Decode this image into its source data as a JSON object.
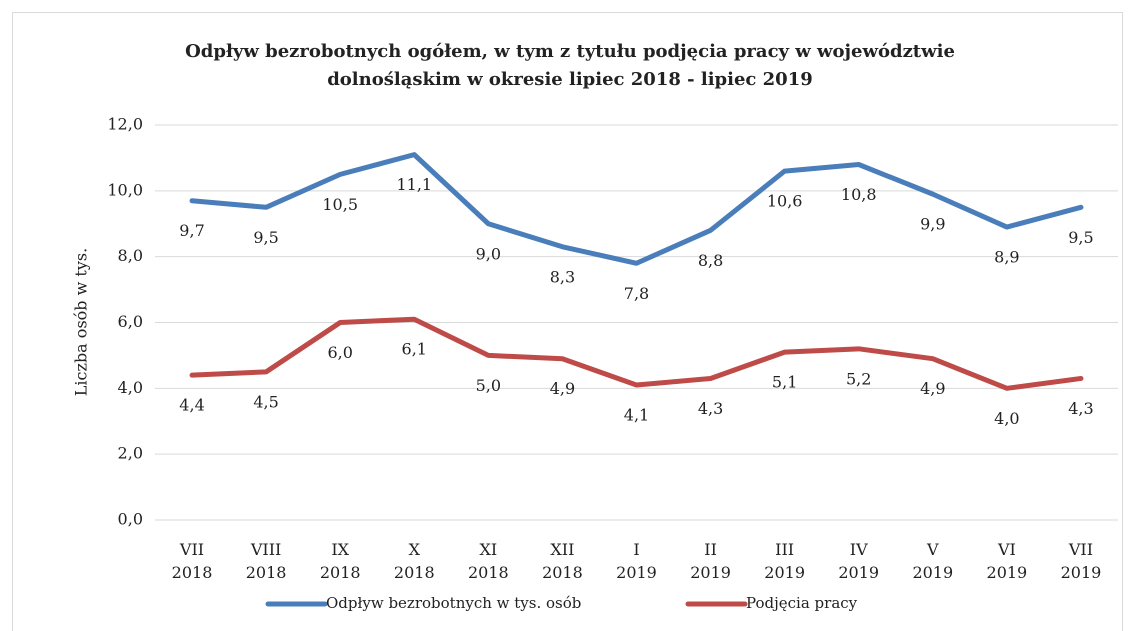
{
  "chart_data": {
    "type": "line",
    "title": [
      "Odpływ bezrobotnych ogółem, w tym z tytułu podjęcia pracy  w województwie",
      "dolnośląskim w okresie lipiec 2018  - lipiec 2019"
    ],
    "y_label": "Liczba osób w tys.",
    "categories": [
      "VII 2018",
      "VIII 2018",
      "IX 2018",
      "X 2018",
      "XI 2018",
      "XII 2018",
      "I 2019",
      "II 2019",
      "III 2019",
      "IV 2019",
      "V 2019",
      "VI 2019",
      "VII 2019"
    ],
    "series": [
      {
        "name": "Odpływ bezrobotnych w tys. osób",
        "color": "#4a7ebb",
        "values": [
          9.7,
          9.5,
          10.5,
          11.1,
          9.0,
          8.3,
          7.8,
          8.8,
          10.6,
          10.8,
          9.9,
          8.9,
          9.5
        ],
        "value_labels": [
          "9,7",
          "9,5",
          "10,5",
          "11,1",
          "9,0",
          "8,3",
          "7,8",
          "8,8",
          "10,6",
          "10,8",
          "9,9",
          "8,9",
          "9,5"
        ]
      },
      {
        "name": "Podjęcia pracy",
        "color": "#be4b48",
        "values": [
          4.4,
          4.5,
          6.0,
          6.1,
          5.0,
          4.9,
          4.1,
          4.3,
          5.1,
          5.2,
          4.9,
          4.0,
          4.3
        ],
        "value_labels": [
          "4,4",
          "4,5",
          "6,0",
          "6,1",
          "5,0",
          "4,9",
          "4,1",
          "4,3",
          "5,1",
          "5,2",
          "4,9",
          "4,0",
          "4,3"
        ]
      }
    ],
    "ylim": [
      0,
      12
    ],
    "yticks": [
      {
        "value": 0,
        "label": "0,0"
      },
      {
        "value": 2,
        "label": "2,0"
      },
      {
        "value": 4,
        "label": "4,0"
      },
      {
        "value": 6,
        "label": "6,0"
      },
      {
        "value": 8,
        "label": "8,0"
      },
      {
        "value": 10,
        "label": "10,0"
      },
      {
        "value": 12,
        "label": "12,0"
      }
    ],
    "grid": true,
    "legend": "bottom"
  }
}
